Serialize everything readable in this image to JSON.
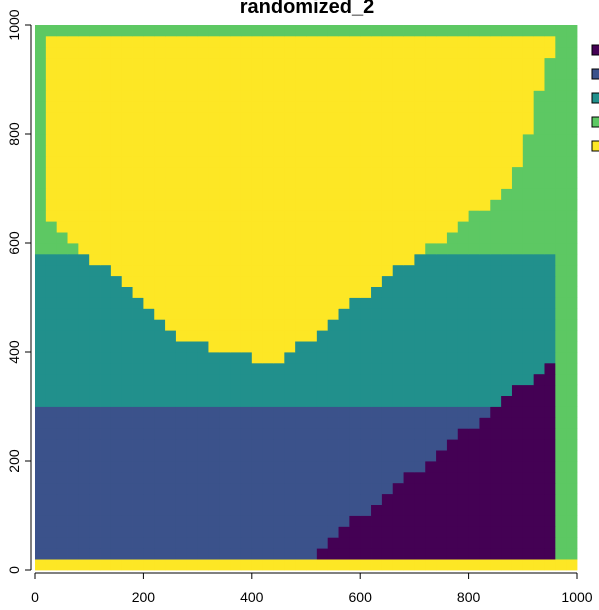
{
  "chart_data": {
    "type": "heatmap",
    "title": "randomized_2",
    "xlabel": "",
    "ylabel": "",
    "xlim": [
      0,
      1000
    ],
    "ylim": [
      0,
      1000
    ],
    "x_ticks": [
      "0",
      "200",
      "400",
      "600",
      "800",
      "1000"
    ],
    "y_ticks": [
      "0",
      "200",
      "400",
      "600",
      "800",
      "1000"
    ],
    "legend": {
      "placement": "right",
      "classes": [
        {
          "label": "",
          "color": "#440154"
        },
        {
          "label": "",
          "color": "#3B528B"
        },
        {
          "label": "",
          "color": "#21908C"
        },
        {
          "label": "",
          "color": "#5DC863"
        },
        {
          "label": "",
          "color": "#FDE725"
        }
      ]
    },
    "palette": [
      "#440154",
      "#3B528B",
      "#21908C",
      "#5DC863",
      "#FDE725"
    ],
    "grid_cells": 50,
    "cell_size_data_units": 20,
    "y_boundaries": [
      [
        0,
        20,
        40,
        60,
        80,
        100,
        120,
        140,
        160,
        180,
        200,
        220,
        240,
        260,
        280,
        300,
        320,
        340,
        360,
        380,
        400,
        420,
        440,
        460,
        480,
        500,
        520,
        540,
        560,
        580,
        600,
        620,
        640,
        660,
        680,
        700,
        720,
        740,
        760,
        780,
        800,
        820,
        840,
        860,
        880,
        900,
        920,
        940,
        960,
        980,
        1000
      ],
      [
        0,
        1,
        1,
        1,
        1,
        1,
        1,
        1,
        1,
        1,
        1,
        1,
        1,
        1,
        1,
        1,
        1,
        1,
        1,
        1,
        1,
        1,
        1,
        1,
        1,
        1,
        1,
        1,
        1,
        1,
        1,
        1,
        1,
        1,
        1,
        1,
        1,
        1,
        1,
        1,
        1,
        1,
        1,
        1,
        1,
        1,
        1,
        1,
        1,
        1,
        1
      ]
    ],
    "class_at": {
      "yellow_border_bottom": {
        "y": [
          0,
          20
        ],
        "class": 5
      },
      "right_strip": {
        "x": [
          965,
          1000
        ],
        "class": 4
      },
      "purple_triangle": {
        "vertices": [
          [
            500,
            20
          ],
          [
            960,
            20
          ],
          [
            960,
            390
          ]
        ],
        "class": 1
      },
      "blue_band": {
        "y": [
          20,
          300
        ],
        "class": 2
      },
      "teal_band": {
        "y": [
          300,
          580
        ],
        "class": 3
      },
      "green_band": {
        "y": [
          580,
          1000
        ],
        "class": 4
      },
      "yellow_blob": {
        "vertices": [
          [
            20,
            980
          ],
          [
            960,
            980
          ],
          [
            880,
            700
          ],
          [
            600,
            500
          ],
          [
            450,
            380
          ],
          [
            280,
            420
          ],
          [
            120,
            560
          ],
          [
            20,
            640
          ]
        ],
        "class": 5
      }
    }
  }
}
